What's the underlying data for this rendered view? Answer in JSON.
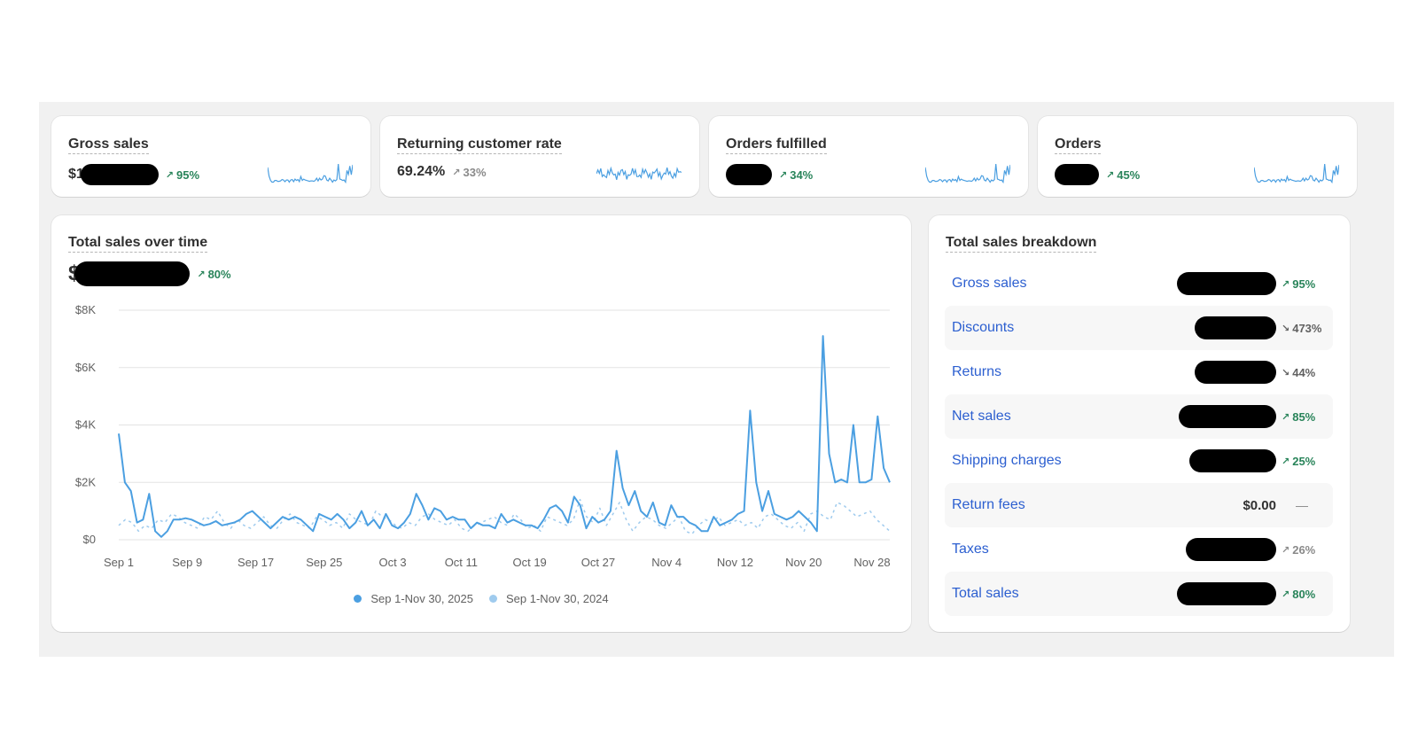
{
  "colors": {
    "primary_series": "#4b9fe1",
    "comparison_series": "#9fcbee",
    "up": "#29845a",
    "down": "#616161",
    "link": "#2c5fd0"
  },
  "metrics": [
    {
      "title": "Gross sales",
      "value_prefix": "$1",
      "change": "95%",
      "direction": "up",
      "icon": "arrow-up-right-icon"
    },
    {
      "title": "Returning customer rate",
      "value_prefix": "69.24%",
      "change": "33%",
      "direction": "muted",
      "icon": "arrow-up-right-icon"
    },
    {
      "title": "Orders fulfilled",
      "value_prefix": "",
      "change": "34%",
      "direction": "up",
      "icon": "arrow-up-right-icon"
    },
    {
      "title": "Orders",
      "value_prefix": "",
      "change": "45%",
      "direction": "up",
      "icon": "arrow-up-right-icon"
    }
  ],
  "sales_over_time": {
    "title": "Total sales over time",
    "value_prefix": "$",
    "change": "80%",
    "legend": [
      "Sep 1-Nov 30, 2025",
      "Sep 1-Nov 30, 2024"
    ]
  },
  "chart_data": {
    "type": "line",
    "ylim": [
      0,
      8000
    ],
    "y_ticks": [
      "$0",
      "$2K",
      "$4K",
      "$6K",
      "$8K"
    ],
    "x_ticks": [
      "Sep 1",
      "Sep 9",
      "Sep 17",
      "Sep 25",
      "Oct 3",
      "Oct 11",
      "Oct 19",
      "Oct 27",
      "Nov 4",
      "Nov 12",
      "Nov 20",
      "Nov 28"
    ],
    "grid": true,
    "legend_position": "bottom",
    "series": [
      {
        "name": "Sep 1-Nov 30, 2025",
        "values": [
          3700,
          2000,
          1700,
          600,
          700,
          1600,
          300,
          100,
          300,
          700,
          700,
          750,
          700,
          600,
          500,
          550,
          650,
          500,
          550,
          600,
          700,
          900,
          1000,
          800,
          600,
          400,
          600,
          800,
          700,
          800,
          700,
          500,
          300,
          900,
          800,
          700,
          900,
          700,
          400,
          600,
          1000,
          500,
          700,
          400,
          900,
          500,
          400,
          600,
          900,
          1600,
          1200,
          700,
          1100,
          1000,
          700,
          800,
          700,
          700,
          400,
          600,
          500,
          500,
          400,
          900,
          600,
          700,
          600,
          500,
          500,
          400,
          700,
          1100,
          1200,
          1000,
          600,
          1500,
          1200,
          400,
          800,
          600,
          700,
          1000,
          3100,
          1800,
          1200,
          1700,
          1000,
          800,
          1300,
          600,
          500,
          1200,
          800,
          800,
          600,
          500,
          300,
          300,
          800,
          500,
          600,
          700,
          900,
          1000,
          4500,
          2000,
          1000,
          1700,
          900,
          800,
          700,
          800,
          1000,
          800,
          600,
          300,
          7100,
          3000,
          2000,
          2100,
          2000,
          4000,
          2000,
          2000,
          2100,
          4300,
          2500,
          2000
        ]
      },
      {
        "name": "Sep 1-Nov 30, 2024",
        "values": [
          500,
          700,
          600,
          300,
          500,
          400,
          700,
          600,
          900,
          800,
          600,
          500,
          400,
          800,
          700,
          1000,
          600,
          400,
          700,
          500,
          400,
          600,
          800,
          500,
          400,
          700,
          900,
          600,
          500,
          400,
          800,
          700,
          500,
          600,
          400,
          900,
          700,
          600,
          500,
          1000,
          800,
          700,
          500,
          400,
          600,
          500,
          800,
          900,
          700,
          600,
          500,
          700,
          400,
          300,
          500,
          600,
          700,
          800,
          600,
          500,
          900,
          700,
          400,
          500,
          300,
          800,
          700,
          600,
          500,
          700,
          1400,
          800,
          600,
          1100,
          500,
          900,
          1300,
          700,
          300,
          600,
          800,
          700,
          500,
          400,
          600,
          800,
          300,
          200,
          500,
          700,
          600,
          800,
          500,
          600,
          700,
          500,
          600,
          400,
          800,
          900,
          700,
          500,
          400,
          600,
          300,
          900,
          1000,
          800,
          700,
          1300,
          1200,
          1000,
          800,
          900,
          1000,
          700,
          500,
          300
        ]
      }
    ]
  },
  "breakdown": {
    "title": "Total sales breakdown",
    "rows": [
      {
        "label": "Gross sales",
        "amount": "",
        "change": "95%",
        "direction": "up"
      },
      {
        "label": "Discounts",
        "amount": "",
        "change": "473%",
        "direction": "down"
      },
      {
        "label": "Returns",
        "amount": "",
        "change": "44%",
        "direction": "down"
      },
      {
        "label": "Net sales",
        "amount": "",
        "change": "85%",
        "direction": "up"
      },
      {
        "label": "Shipping charges",
        "amount": "",
        "change": "25%",
        "direction": "up"
      },
      {
        "label": "Return fees",
        "amount": "$0.00",
        "change": "—",
        "direction": "none"
      },
      {
        "label": "Taxes",
        "amount": "",
        "change": "26%",
        "direction": "muted"
      },
      {
        "label": "Total sales",
        "amount": "",
        "change": "80%",
        "direction": "up"
      }
    ]
  }
}
